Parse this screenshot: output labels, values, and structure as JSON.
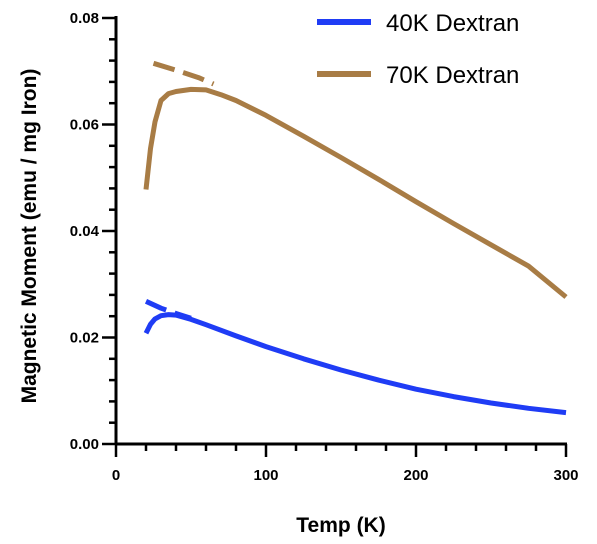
{
  "chart_data": {
    "type": "line",
    "xlabel": "Temp (K)",
    "ylabel": "Magnetic Moment (emu / mg Iron)",
    "xlim": [
      0,
      300
    ],
    "ylim": [
      0,
      0.08
    ],
    "x_ticks": [
      0,
      100,
      200,
      300
    ],
    "x_tick_labels": [
      "0",
      "100",
      "200",
      "300"
    ],
    "y_ticks": [
      0,
      0.02,
      0.04,
      0.06,
      0.08
    ],
    "y_tick_labels": [
      "0.00",
      "0.02",
      "0.04",
      "0.06",
      "0.08"
    ],
    "legend_position": "top-right",
    "series": [
      {
        "name": "40K Dextran",
        "color": "#1f3cf5",
        "solid": {
          "x": [
            20,
            23,
            26,
            30,
            35,
            40,
            50,
            60,
            80,
            100,
            125,
            150,
            175,
            200,
            225,
            250,
            275,
            300
          ],
          "y": [
            0.0208,
            0.0225,
            0.0235,
            0.0241,
            0.0243,
            0.0242,
            0.0234,
            0.0224,
            0.0203,
            0.0183,
            0.016,
            0.0139,
            0.012,
            0.0103,
            0.0089,
            0.0077,
            0.0067,
            0.0059
          ]
        },
        "dashed": {
          "x": [
            20,
            30,
            40,
            50
          ],
          "y": [
            0.0268,
            0.0255,
            0.0245,
            0.0236
          ]
        }
      },
      {
        "name": "70K Dextran",
        "color": "#a87c45",
        "solid": {
          "x": [
            20,
            23,
            26,
            30,
            35,
            40,
            50,
            60,
            70,
            80,
            100,
            125,
            150,
            175,
            200,
            225,
            250,
            275,
            300
          ],
          "y": [
            0.0478,
            0.0555,
            0.0605,
            0.0645,
            0.0658,
            0.0662,
            0.0666,
            0.0665,
            0.0656,
            0.0645,
            0.0617,
            0.0578,
            0.0538,
            0.0497,
            0.0455,
            0.0414,
            0.0374,
            0.0334,
            0.0276
          ]
        },
        "dashed": {
          "x": [
            25,
            40,
            55,
            65
          ],
          "y": [
            0.0715,
            0.0702,
            0.0688,
            0.0676
          ]
        }
      }
    ]
  }
}
